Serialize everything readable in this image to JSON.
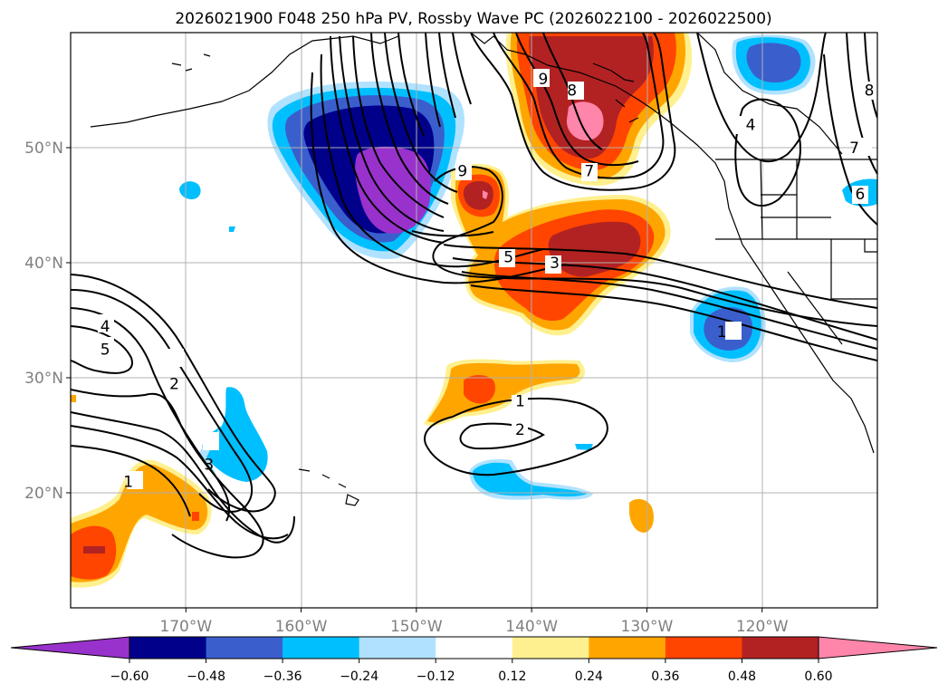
{
  "chart_data": {
    "type": "map-contour",
    "title": "2026021900 F048 250 hPa PV, Rossby Wave PC (2026022100 - 2026022500)",
    "lon_range": [
      -180,
      -110
    ],
    "lat_range": [
      10,
      60
    ],
    "x_ticks": [
      {
        "lon": -170,
        "label": "170°W"
      },
      {
        "lon": -160,
        "label": "160°W"
      },
      {
        "lon": -150,
        "label": "150°W"
      },
      {
        "lon": -140,
        "label": "140°W"
      },
      {
        "lon": -130,
        "label": "130°W"
      },
      {
        "lon": -120,
        "label": "120°W"
      }
    ],
    "y_ticks": [
      {
        "lat": 20,
        "label": "20°N"
      },
      {
        "lat": 30,
        "label": "30°N"
      },
      {
        "lat": 40,
        "label": "40°N"
      },
      {
        "lat": 50,
        "label": "50°N"
      }
    ],
    "grid": true,
    "colorbar": {
      "levels": [
        -0.6,
        -0.48,
        -0.36,
        -0.24,
        -0.12,
        0.12,
        0.24,
        0.36,
        0.48,
        0.6
      ],
      "tick_labels": [
        "−0.60",
        "−0.48",
        "−0.36",
        "−0.24",
        "−0.12",
        "0.12",
        "0.24",
        "0.36",
        "0.48",
        "0.60"
      ],
      "colors": [
        "#9932cc",
        "#00008b",
        "#3a5fcd",
        "#00bfff",
        "#b0e2ff",
        "#ffffff",
        "#fff08f",
        "#ffa500",
        "#ff4500",
        "#b22222",
        "#ff85aa"
      ]
    },
    "shaded_features": [
      {
        "name": "negative-anomaly-gulf-of-alaska",
        "lon": -151,
        "lat": 46,
        "peak": -0.65
      },
      {
        "name": "positive-anomaly-bc-coast",
        "lon": -137,
        "lat": 54,
        "peak": 0.62
      },
      {
        "name": "positive-anomaly-ne-pacific",
        "lon": -137,
        "lat": 39,
        "peak": 0.5
      },
      {
        "name": "negative-anomaly-california-coast",
        "lon": -123,
        "lat": 34,
        "peak": -0.45
      },
      {
        "name": "negative-anomaly-hudson-bay",
        "lon": -119,
        "lat": 57,
        "peak": -0.45
      },
      {
        "name": "positive-anomaly-west-pacific",
        "lon": -178,
        "lat": 15,
        "peak": 0.5
      },
      {
        "name": "negative-anomaly-hawaii-north",
        "lon": -165,
        "lat": 24,
        "peak": -0.3
      }
    ],
    "contour_labels": [
      {
        "text": "9",
        "lon": -139,
        "lat": 56
      },
      {
        "text": "8",
        "lon": -136.5,
        "lat": 55
      },
      {
        "text": "7",
        "lon": -135,
        "lat": 48
      },
      {
        "text": "9",
        "lon": -146,
        "lat": 48
      },
      {
        "text": "5",
        "lon": -142,
        "lat": 40.5
      },
      {
        "text": "3",
        "lon": -138,
        "lat": 40
      },
      {
        "text": "4",
        "lon": -121,
        "lat": 52
      },
      {
        "text": "7",
        "lon": -112,
        "lat": 50
      },
      {
        "text": "8",
        "lon": -110.7,
        "lat": 55
      },
      {
        "text": "6",
        "lon": -111.5,
        "lat": 46
      },
      {
        "text": "1",
        "lon": -123.5,
        "lat": 34
      },
      {
        "text": "4",
        "lon": -177,
        "lat": 34.5
      },
      {
        "text": "5",
        "lon": -177,
        "lat": 32.5
      },
      {
        "text": "2",
        "lon": -171,
        "lat": 29.5
      },
      {
        "text": "3",
        "lon": -168,
        "lat": 22.5
      },
      {
        "text": "1",
        "lon": -175,
        "lat": 21
      },
      {
        "text": "1",
        "lon": -141,
        "lat": 28
      },
      {
        "text": "2",
        "lon": -141,
        "lat": 25.5
      }
    ]
  }
}
